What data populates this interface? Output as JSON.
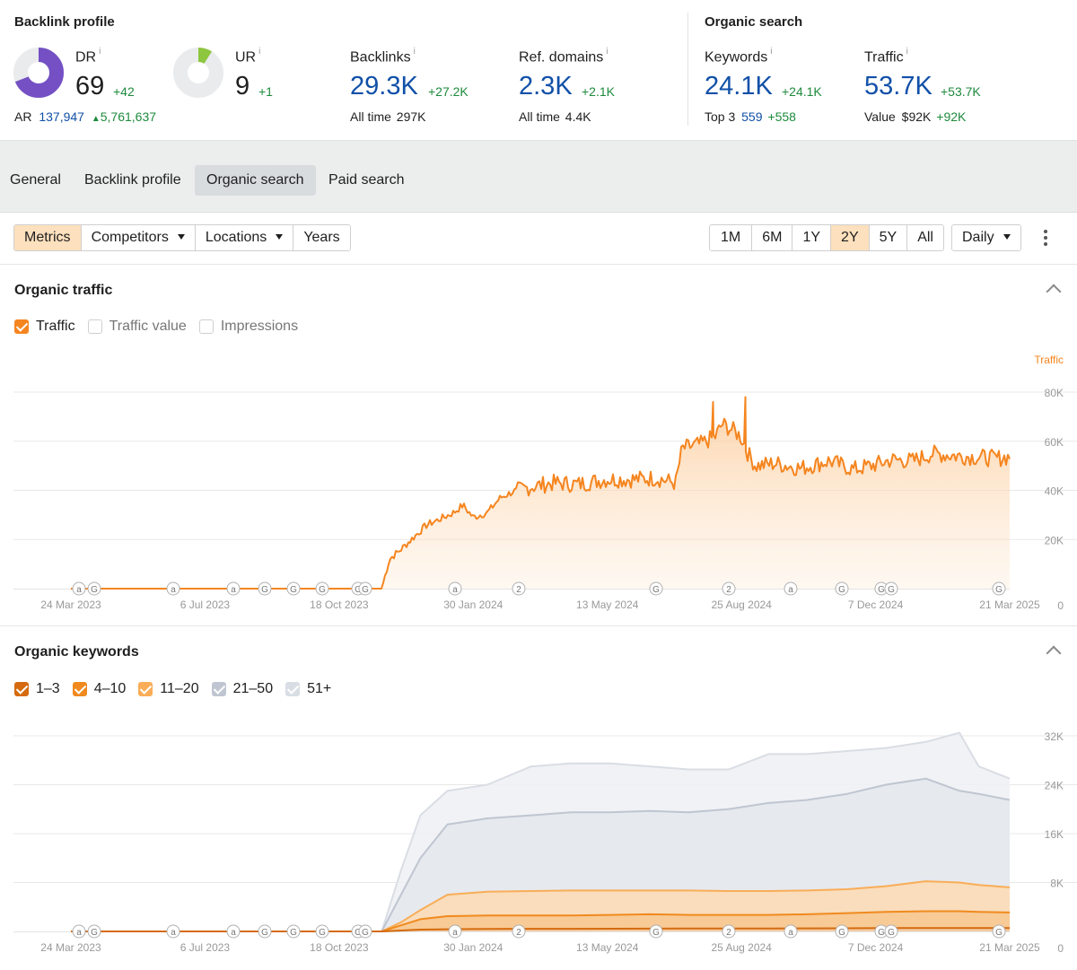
{
  "backlink_profile": {
    "title": "Backlink profile",
    "dr": {
      "label": "DR",
      "info": "i",
      "value": "69",
      "delta": "+42",
      "fraction": 0.69,
      "color": "#7450c4"
    },
    "ar": {
      "label": "AR",
      "value": "137,947",
      "delta": "5,761,637"
    },
    "ur": {
      "label": "UR",
      "info": "i",
      "value": "9",
      "delta": "+1",
      "fraction": 0.09,
      "color": "#8dc63f"
    },
    "backlinks": {
      "label": "Backlinks",
      "info": "i",
      "value": "29.3K",
      "delta": "+27.2K",
      "sub_label": "All time",
      "sub_value": "297K"
    },
    "ref_domains": {
      "label": "Ref. domains",
      "info": "i",
      "value": "2.3K",
      "delta": "+2.1K",
      "sub_label": "All time",
      "sub_value": "4.4K"
    }
  },
  "organic_search": {
    "title": "Organic search",
    "keywords": {
      "label": "Keywords",
      "info": "i",
      "value": "24.1K",
      "delta": "+24.1K",
      "sub_label": "Top 3",
      "sub_value": "559",
      "sub_delta": "+558"
    },
    "traffic": {
      "label": "Traffic",
      "info": "i",
      "value": "53.7K",
      "delta": "+53.7K",
      "sub_label": "Value",
      "sub_value": "$92K",
      "sub_delta": "+92K"
    }
  },
  "tabs": [
    {
      "label": "General",
      "active": false
    },
    {
      "label": "Backlink profile",
      "active": false
    },
    {
      "label": "Organic search",
      "active": true
    },
    {
      "label": "Paid search",
      "active": false
    }
  ],
  "toolbar": {
    "metrics": "Metrics",
    "competitors": "Competitors",
    "locations": "Locations",
    "years": "Years",
    "ranges": [
      "1M",
      "6M",
      "1Y",
      "2Y",
      "5Y",
      "All"
    ],
    "active_range": "2Y",
    "granularity": "Daily"
  },
  "organic_traffic": {
    "title": "Organic traffic",
    "legend": [
      {
        "label": "Traffic",
        "checked": true,
        "color": "#f5851f"
      },
      {
        "label": "Traffic value",
        "checked": false,
        "color": "#cfcfcf"
      },
      {
        "label": "Impressions",
        "checked": false,
        "color": "#cfcfcf"
      }
    ]
  },
  "organic_keywords": {
    "title": "Organic keywords",
    "legend": [
      {
        "label": "1–3",
        "checked": true,
        "color": "#d56b0e"
      },
      {
        "label": "4–10",
        "checked": true,
        "color": "#f08a1e"
      },
      {
        "label": "11–20",
        "checked": true,
        "color": "#f9ad57"
      },
      {
        "label": "21–50",
        "checked": true,
        "color": "#bfc6d1"
      },
      {
        "label": "51+",
        "checked": true,
        "color": "#d9dde4"
      }
    ]
  },
  "chart_data": [
    {
      "type": "area",
      "title": "Organic traffic",
      "axis_label": "Traffic",
      "x_ticks": [
        "24 Mar 2023",
        "6 Jul 2023",
        "18 Oct 2023",
        "30 Jan 2024",
        "13 May 2024",
        "25 Aug 2024",
        "7 Dec 2024",
        "21 Mar 2025"
      ],
      "y_ticks": [
        "80K",
        "60K",
        "40K",
        "20K",
        "0"
      ],
      "ylim": [
        0,
        80000
      ],
      "grid": true,
      "color": "#f5851f",
      "series": [
        {
          "name": "Traffic",
          "x": [
            "2023-03-24",
            "2023-11-20",
            "2023-11-26",
            "2023-12-05",
            "2023-12-15",
            "2023-12-25",
            "2024-01-05",
            "2024-01-15",
            "2024-01-22",
            "2024-01-30",
            "2024-02-10",
            "2024-02-20",
            "2024-03-01",
            "2024-03-15",
            "2024-04-01",
            "2024-04-20",
            "2024-05-13",
            "2024-06-01",
            "2024-06-20",
            "2024-07-05",
            "2024-07-10",
            "2024-07-25",
            "2024-08-05",
            "2024-08-10",
            "2024-08-20",
            "2024-08-25",
            "2024-08-30",
            "2024-09-05",
            "2024-09-20",
            "2024-10-10",
            "2024-11-01",
            "2024-11-20",
            "2024-12-07",
            "2024-12-20",
            "2025-01-05",
            "2025-01-20",
            "2025-02-10",
            "2025-02-25",
            "2025-03-10",
            "2025-03-21"
          ],
          "y": [
            0,
            0,
            12000,
            16000,
            21000,
            26000,
            28500,
            31000,
            34000,
            29000,
            31000,
            37000,
            39500,
            41500,
            43000,
            42500,
            44500,
            44500,
            45000,
            43000,
            57000,
            59000,
            62000,
            67000,
            64000,
            61500,
            55000,
            50000,
            51000,
            49000,
            52000,
            48500,
            50500,
            52500,
            52000,
            55000,
            54000,
            53500,
            53000,
            53700
          ]
        }
      ],
      "annotation_markers_top": [
        "a",
        "G",
        "a",
        "a",
        "G",
        "G",
        "G",
        "G",
        "G",
        "a",
        "2",
        "G",
        "2",
        "a",
        "G",
        "G",
        "G",
        "G"
      ],
      "annotation_markers_bottom": []
    },
    {
      "type": "area",
      "title": "Organic keywords",
      "x_ticks": [
        "24 Mar 2023",
        "6 Jul 2023",
        "18 Oct 2023",
        "30 Jan 2024",
        "13 May 2024",
        "25 Aug 2024",
        "7 Dec 2024",
        "21 Mar 2025"
      ],
      "y_ticks": [
        "32K",
        "24K",
        "16K",
        "8K",
        "0"
      ],
      "ylim": [
        0,
        32000
      ],
      "grid": true,
      "stacked": true,
      "x": [
        "2023-03-24",
        "2023-11-20",
        "2023-12-05",
        "2023-12-20",
        "2024-01-10",
        "2024-02-10",
        "2024-03-15",
        "2024-04-15",
        "2024-05-15",
        "2024-06-15",
        "2024-07-15",
        "2024-08-15",
        "2024-09-15",
        "2024-10-15",
        "2024-11-15",
        "2024-12-15",
        "2025-01-15",
        "2025-02-10",
        "2025-02-25",
        "2025-03-21"
      ],
      "series": [
        {
          "name": "1–3",
          "color": "#d56b0e",
          "values": [
            0,
            0,
            150,
            300,
            350,
            400,
            420,
            430,
            440,
            450,
            470,
            480,
            490,
            500,
            520,
            540,
            555,
            560,
            560,
            559
          ]
        },
        {
          "name": "4–10",
          "color": "#f08a1e",
          "values": [
            0,
            0,
            1000,
            2000,
            2500,
            2600,
            2600,
            2600,
            2700,
            2800,
            2700,
            2700,
            2700,
            2800,
            3000,
            3200,
            3300,
            3300,
            3200,
            3100
          ]
        },
        {
          "name": "11–20",
          "color": "#f9ad57",
          "values": [
            0,
            0,
            1500,
            3500,
            6000,
            6500,
            6600,
            6700,
            6700,
            6700,
            6700,
            6600,
            6600,
            6700,
            6900,
            7400,
            8200,
            8000,
            7600,
            7200
          ]
        },
        {
          "name": "21–50",
          "color": "#bfc6d1",
          "values": [
            0,
            0,
            6000,
            12000,
            17500,
            18500,
            19000,
            19500,
            19500,
            19700,
            19500,
            20000,
            21000,
            21500,
            22500,
            24000,
            25000,
            23000,
            22500,
            21500
          ]
        },
        {
          "name": "51+",
          "color": "#d9dde4",
          "values": [
            0,
            0,
            10000,
            19000,
            23000,
            24000,
            27000,
            27500,
            27500,
            27000,
            26500,
            26500,
            29000,
            29000,
            29500,
            30000,
            31000,
            32500,
            27000,
            25000
          ]
        }
      ],
      "annotation_markers": [
        "a",
        "G",
        "a",
        "a",
        "G",
        "G",
        "G",
        "G",
        "G",
        "a",
        "2",
        "G",
        "2",
        "a",
        "G",
        "G",
        "G",
        "G"
      ]
    }
  ]
}
